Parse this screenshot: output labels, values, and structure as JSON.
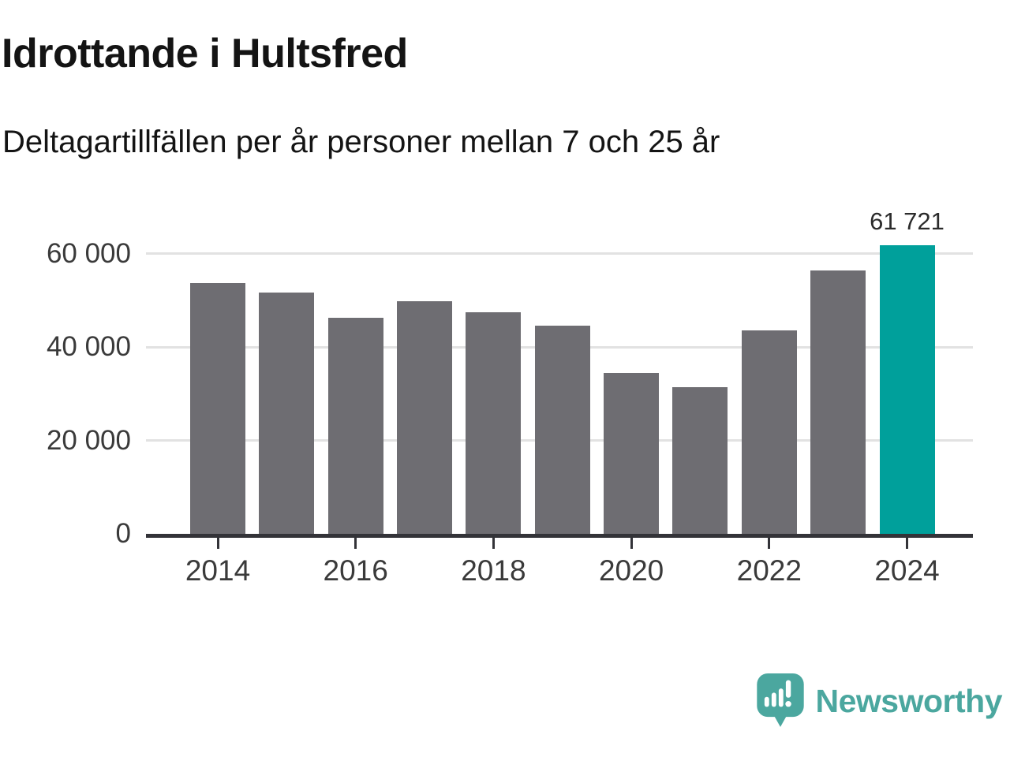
{
  "header": {
    "title": "Idrottande i Hultsfred",
    "subtitle": "Deltagartillfällen per år personer mellan 7 och 25 år"
  },
  "chart_data": {
    "type": "bar",
    "categories": [
      "2014",
      "2015",
      "2016",
      "2017",
      "2018",
      "2019",
      "2020",
      "2021",
      "2022",
      "2023",
      "2024"
    ],
    "values": [
      53700,
      51600,
      46300,
      49800,
      47400,
      44500,
      34400,
      31400,
      43600,
      56400,
      61721
    ],
    "title": "Idrottande i Hultsfred",
    "subtitle": "Deltagartillfällen per år personer mellan 7 och 25 år",
    "xlabel": "",
    "ylabel": "",
    "ylim": [
      0,
      66000
    ],
    "yticks": [
      0,
      20000,
      40000,
      60000
    ],
    "ytick_labels": [
      "0",
      "20 000",
      "40 000",
      "60 000"
    ],
    "xtick_labels": [
      "2014",
      "2016",
      "2018",
      "2020",
      "2022",
      "2024"
    ],
    "grid": "horizontal-only",
    "legend": "none",
    "highlight_index": 10,
    "annotation": {
      "index": 10,
      "label": "61 721"
    },
    "colors": {
      "bar": "#6e6d72",
      "highlight": "#00a09b",
      "gridline": "#e2e2e2",
      "axis": "#333338",
      "tick_label": "#3a3a3a"
    }
  },
  "footer": {
    "brand": "Newsworthy",
    "brand_color": "#4ba79f",
    "logo_icon": "newsworthy-speech-bubble-bar-chart-icon"
  }
}
